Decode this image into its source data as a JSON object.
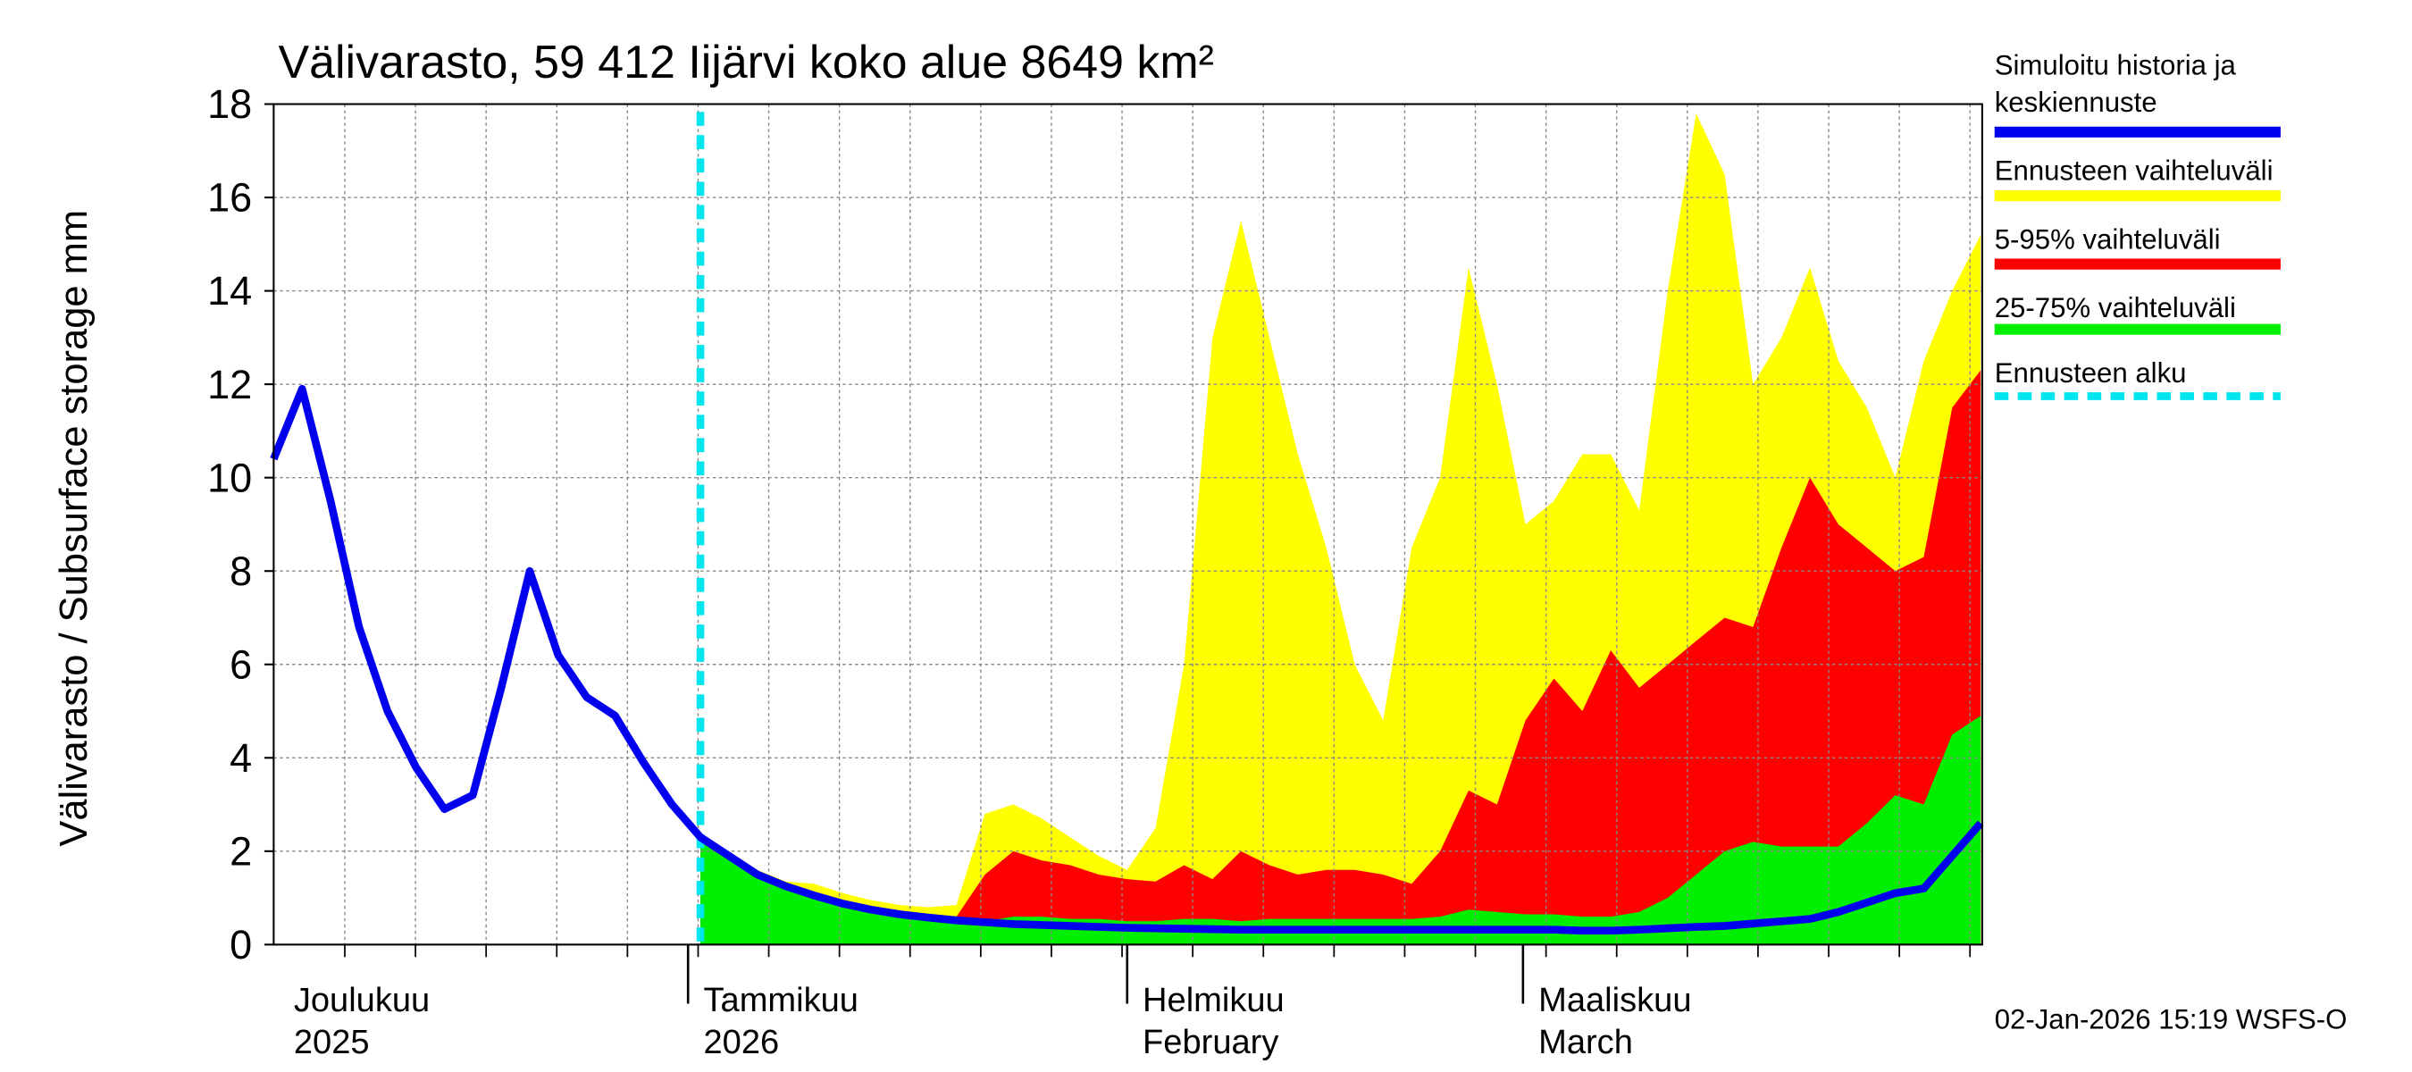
{
  "chart_data": {
    "type": "area-band",
    "title": "Välivarasto, 59 412 Iijärvi koko alue 8649 km²",
    "y_label": "Välivarasto / Subsurface storage  mm",
    "footer": "02-Jan-2026 15:19 WSFS-O",
    "ylim": [
      0,
      18
    ],
    "yticks": [
      0,
      2,
      4,
      6,
      8,
      10,
      12,
      14,
      16,
      18
    ],
    "grid": true,
    "x_labels": [
      [
        "Joulukuu",
        "2025"
      ],
      [
        "Tammikuu",
        "2026"
      ],
      [
        "Helmikuu",
        "February"
      ],
      [
        "Maaliskuu",
        "March"
      ]
    ],
    "series": [
      {
        "name": "Simuloitu historia ja keskiennuste",
        "color": "#0000ee",
        "kind": "line",
        "values": [
          10.4,
          11.9,
          9.5,
          6.8,
          5.0,
          3.8,
          2.9,
          3.2,
          5.5,
          8.0,
          6.2,
          5.3,
          4.9,
          3.9,
          3.0,
          2.3,
          1.9,
          1.5,
          1.25,
          1.05,
          0.88,
          0.75,
          0.65,
          0.58,
          0.52,
          0.48,
          0.44,
          0.42,
          0.4,
          0.38,
          0.36,
          0.35,
          0.34,
          0.33,
          0.32,
          0.32,
          0.32,
          0.32,
          0.32,
          0.32,
          0.32,
          0.32,
          0.32,
          0.32,
          0.32,
          0.32,
          0.3,
          0.3,
          0.32,
          0.35,
          0.38,
          0.4,
          0.45,
          0.5,
          0.55,
          0.7,
          0.9,
          1.1,
          1.2,
          1.9,
          2.6
        ]
      },
      {
        "name": "Ennusteen vaihteluväli",
        "color": "#ffff00",
        "kind": "band",
        "values": [
          null,
          null,
          null,
          null,
          null,
          null,
          null,
          null,
          null,
          null,
          null,
          null,
          null,
          null,
          null,
          2.3,
          1.9,
          1.6,
          1.35,
          1.3,
          1.1,
          0.95,
          0.85,
          0.8,
          0.85,
          2.8,
          3.0,
          2.7,
          2.3,
          1.9,
          1.6,
          2.5,
          6.0,
          13.0,
          15.5,
          13.0,
          10.5,
          8.5,
          6.0,
          4.8,
          8.5,
          10.0,
          14.5,
          12.0,
          9.0,
          9.5,
          10.5,
          10.5,
          9.3,
          14.0,
          17.8,
          16.5,
          12.0,
          13.0,
          14.5,
          12.5,
          11.5,
          10.0,
          12.5,
          14.0,
          15.2
        ]
      },
      {
        "name": "5-95% vaihteluväli",
        "color": "#ff0000",
        "kind": "band",
        "values": [
          null,
          null,
          null,
          null,
          null,
          null,
          null,
          null,
          null,
          null,
          null,
          null,
          null,
          null,
          null,
          2.3,
          1.9,
          1.5,
          1.25,
          1.05,
          0.88,
          0.75,
          0.65,
          0.6,
          0.6,
          1.5,
          2.0,
          1.8,
          1.7,
          1.5,
          1.4,
          1.35,
          1.7,
          1.4,
          2.0,
          1.7,
          1.5,
          1.6,
          1.6,
          1.5,
          1.3,
          2.0,
          3.3,
          3.0,
          4.8,
          5.7,
          5.0,
          6.3,
          5.5,
          6.0,
          6.5,
          7.0,
          6.8,
          8.5,
          10.0,
          9.0,
          8.5,
          8.0,
          8.3,
          11.5,
          12.3
        ]
      },
      {
        "name": "25-75% vaihteluväli",
        "color": "#00ee00",
        "kind": "band",
        "values": [
          null,
          null,
          null,
          null,
          null,
          null,
          null,
          null,
          null,
          null,
          null,
          null,
          null,
          null,
          null,
          2.3,
          1.9,
          1.5,
          1.25,
          1.05,
          0.88,
          0.75,
          0.65,
          0.58,
          0.52,
          0.5,
          0.6,
          0.6,
          0.55,
          0.55,
          0.5,
          0.5,
          0.55,
          0.55,
          0.5,
          0.55,
          0.55,
          0.55,
          0.55,
          0.55,
          0.55,
          0.6,
          0.75,
          0.7,
          0.65,
          0.65,
          0.6,
          0.6,
          0.7,
          1.0,
          1.5,
          2.0,
          2.2,
          2.1,
          2.1,
          2.1,
          2.6,
          3.2,
          3.0,
          4.5,
          4.9
        ]
      }
    ],
    "forecast_start": {
      "name": "Ennusteen alku",
      "color": "#00e5ee"
    }
  }
}
